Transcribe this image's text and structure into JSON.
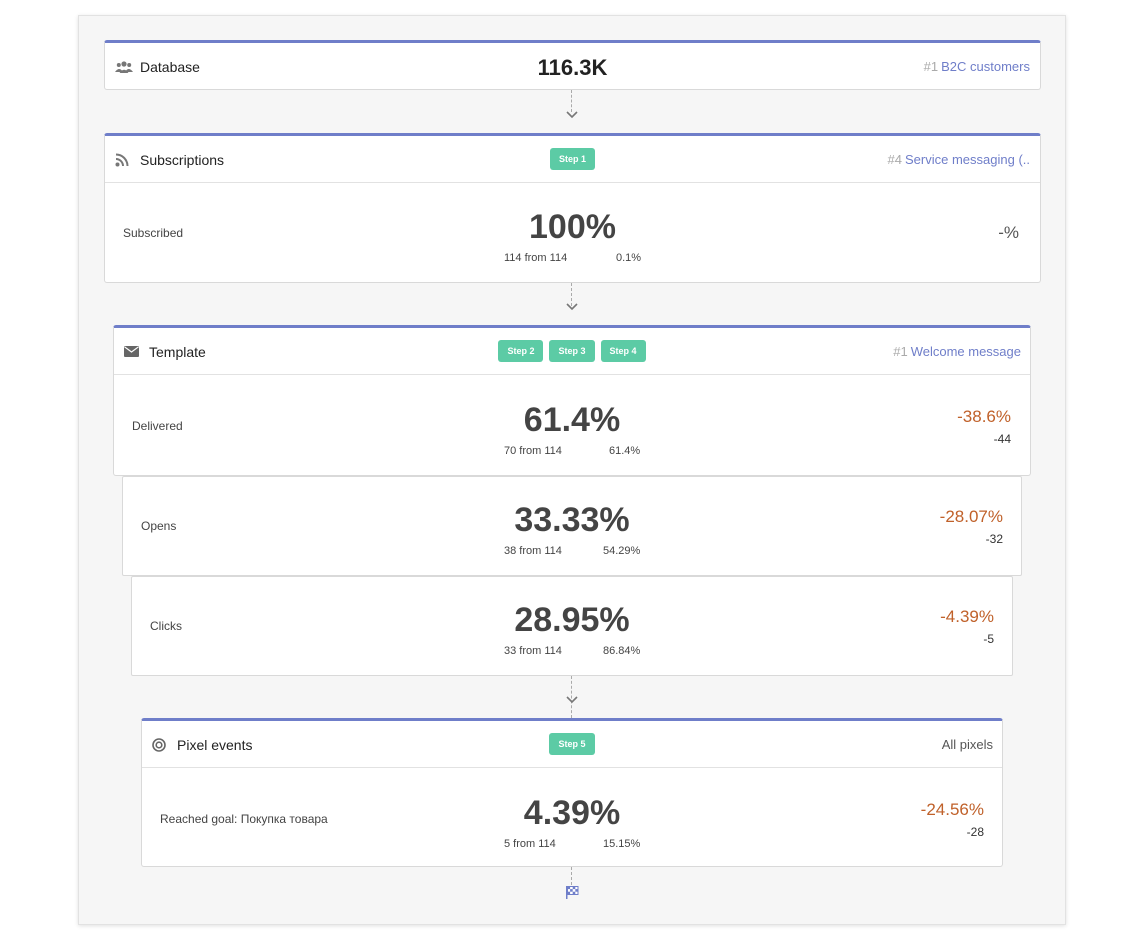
{
  "database": {
    "title": "Database",
    "value": "116.3K",
    "link_num": "#1",
    "link_text": "B2C customers",
    "icon": "users-icon"
  },
  "subscriptions": {
    "title": "Subscriptions",
    "icon": "rss-icon",
    "steps": [
      "Step 1"
    ],
    "link_num": "#4",
    "link_text": "Service messaging (..",
    "rows": [
      {
        "label": "Subscribed",
        "value": "100%",
        "from": "114 from 114",
        "pct": "0.1%",
        "delta": "-%",
        "delta_sub": ""
      }
    ]
  },
  "template": {
    "title": "Template",
    "icon": "envelope-icon",
    "steps": [
      "Step 2",
      "Step 3",
      "Step 4"
    ],
    "link_num": "#1",
    "link_text": "Welcome message",
    "rows": [
      {
        "label": "Delivered",
        "value": "61.4%",
        "from": "70 from 114",
        "pct": "61.4%",
        "delta": "-38.6%",
        "delta_sub": "-44"
      },
      {
        "label": "Opens",
        "value": "33.33%",
        "from": "38 from 114",
        "pct": "54.29%",
        "delta": "-28.07%",
        "delta_sub": "-32"
      },
      {
        "label": "Clicks",
        "value": "28.95%",
        "from": "33 from 114",
        "pct": "86.84%",
        "delta": "-4.39%",
        "delta_sub": "-5"
      }
    ]
  },
  "pixel": {
    "title": "Pixel events",
    "icon": "target-icon",
    "steps": [
      "Step 5"
    ],
    "right_text": "All pixels",
    "rows": [
      {
        "label": "Reached goal: Покупка товара",
        "value": "4.39%",
        "from": "5 from 114",
        "pct": "15.15%",
        "delta": "-24.56%",
        "delta_sub": "-28"
      }
    ]
  },
  "colors": {
    "accent": "#6f7ec9",
    "step": "#5ccba5",
    "negative": "#c0612a"
  },
  "finish_icon": "checkered-flag-icon"
}
